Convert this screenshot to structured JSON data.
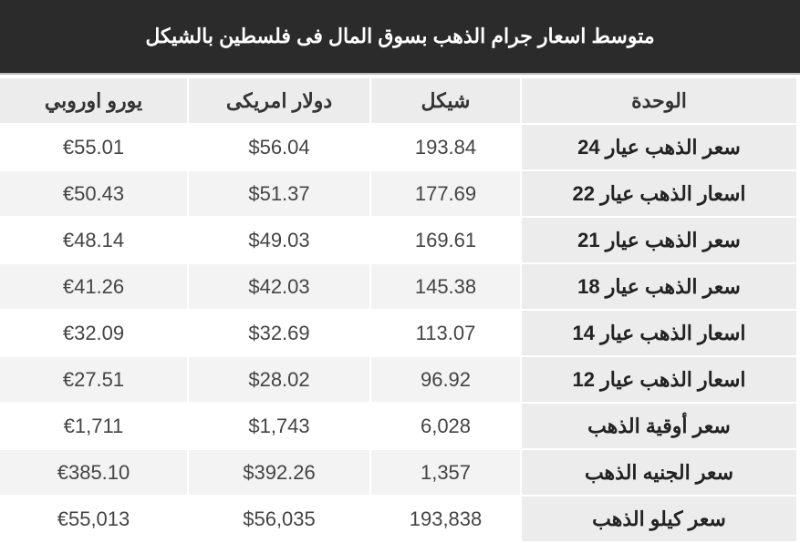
{
  "title": "متوسط اسعار جرام الذهب بسوق المال فى فلسطين بالشيكل",
  "headers": {
    "euro": "يورو اوروبي",
    "dollar": "دولار امريكى",
    "shekel": "شيكل",
    "unit": "الوحدة"
  },
  "rows": [
    {
      "unit": "سعر الذهب عيار 24",
      "shekel": "193.84",
      "dollar": "$56.04",
      "euro": "€55.01"
    },
    {
      "unit": "اسعار الذهب عيار 22",
      "shekel": "177.69",
      "dollar": "$51.37",
      "euro": "€50.43"
    },
    {
      "unit": "سعر الذهب عيار 21",
      "shekel": "169.61",
      "dollar": "$49.03",
      "euro": "€48.14"
    },
    {
      "unit": "سعر الذهب عيار 18",
      "shekel": "145.38",
      "dollar": "$42.03",
      "euro": "€41.26"
    },
    {
      "unit": "اسعار الذهب عيار 14",
      "shekel": "113.07",
      "dollar": "$32.69",
      "euro": "€32.09"
    },
    {
      "unit": "اسعار الذهب عيار 12",
      "shekel": "96.92",
      "dollar": "$28.02",
      "euro": "€27.51"
    },
    {
      "unit": "سعر أوقية الذهب",
      "shekel": "6,028",
      "dollar": "$1,743",
      "euro": "€1,711"
    },
    {
      "unit": "سعر الجنيه الذهب",
      "shekel": "1,357",
      "dollar": "$392.26",
      "euro": "€385.10"
    },
    {
      "unit": "سعر كيلو الذهب",
      "shekel": "193,838",
      "dollar": "$56,035",
      "euro": "€55,013"
    }
  ]
}
